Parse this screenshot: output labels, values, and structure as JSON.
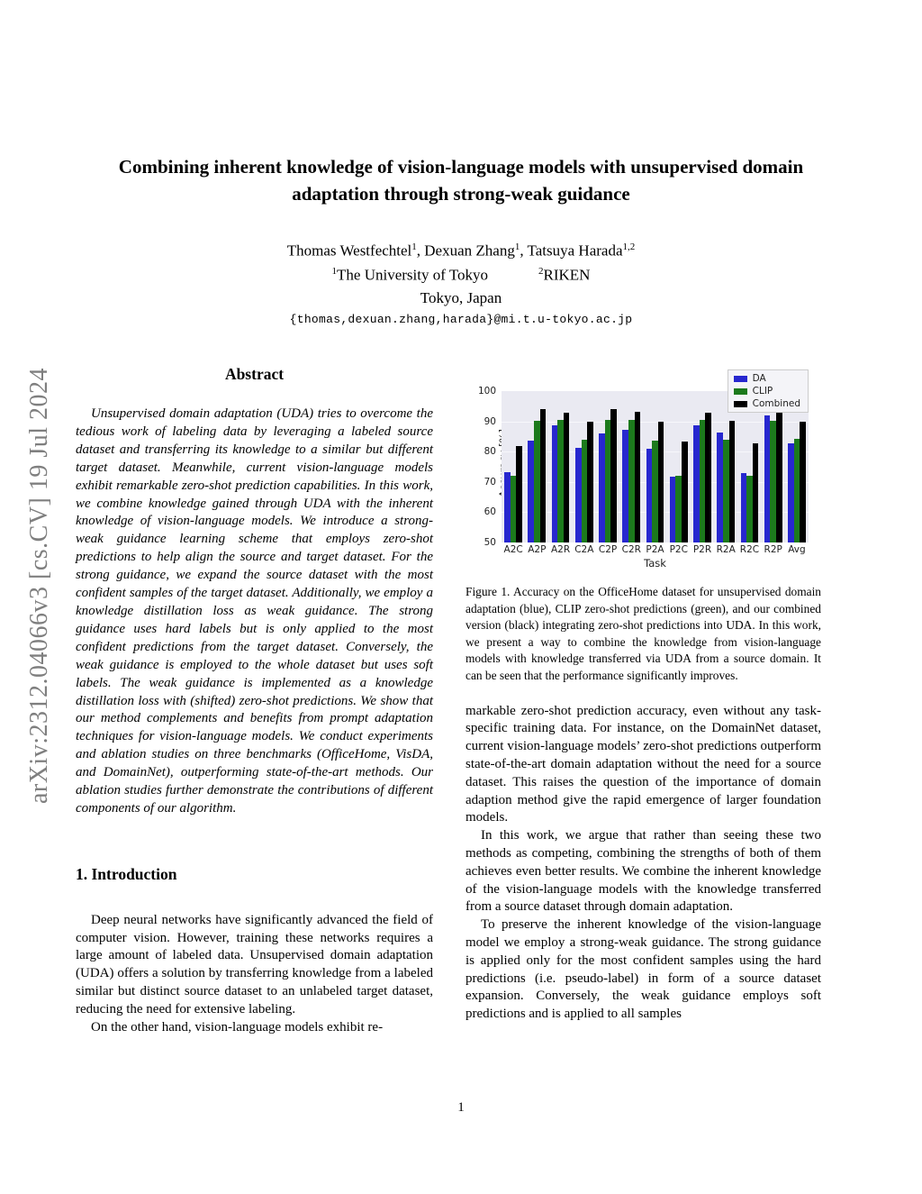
{
  "arxiv_banner": "arXiv:2312.04066v3  [cs.CV]  19 Jul 2024",
  "title": "Combining inherent knowledge of vision-language models with unsupervised domain adaptation through strong-weak guidance",
  "authors": {
    "line": [
      {
        "t": "Thomas Westfechtel",
        "s": "1"
      },
      {
        "t": ", Dexuan Zhang",
        "s": "1"
      },
      {
        "t": ", Tatsuya Harada",
        "s": "1,2"
      }
    ],
    "affiliations": [
      {
        "s": "1",
        "t": "The University of Tokyo"
      },
      {
        "s": "2",
        "t": "RIKEN"
      }
    ],
    "city": "Tokyo, Japan",
    "email": "{thomas,dexuan.zhang,harada}@mi.t.u-tokyo.ac.jp"
  },
  "abstract": {
    "heading": "Abstract",
    "text": "Unsupervised domain adaptation (UDA) tries to overcome the tedious work of labeling data by leveraging a labeled source dataset and transferring its knowledge to a similar but different target dataset. Meanwhile, current vision-language models exhibit remarkable zero-shot prediction capabilities. In this work, we combine knowledge gained through UDA with the inherent knowledge of vision-language models. We introduce a strong-weak guidance learning scheme that employs zero-shot predictions to help align the source and target dataset. For the strong guidance, we expand the source dataset with the most confident samples of the target dataset. Additionally, we employ a knowledge distillation loss as weak guidance. The strong guidance uses hard labels but is only applied to the most confident predictions from the target dataset. Conversely, the weak guidance is employed to the whole dataset but uses soft labels. The weak guidance is implemented as a knowledge distillation loss with (shifted) zero-shot predictions. We show that our method complements and benefits from prompt adaptation techniques for vision-language models. We conduct experiments and ablation studies on three benchmarks (OfficeHome, VisDA, and DomainNet), outperforming state-of-the-art methods. Our ablation studies further demonstrate the contributions of different components of our algorithm."
  },
  "introduction": {
    "heading": "1. Introduction",
    "paragraphs": [
      "Deep neural networks have significantly advanced the field of computer vision. However, training these networks requires a large amount of labeled data. Unsupervised domain adaptation (UDA) offers a solution by transferring knowledge from a labeled similar but distinct source dataset to an unlabeled target dataset, reducing the need for extensive labeling.",
      "On the other hand, vision-language models exhibit re-"
    ]
  },
  "figure": {
    "caption": "Figure 1.  Accuracy on the OfficeHome dataset for unsupervised domain adaptation (blue), CLIP zero-shot predictions (green), and our combined version (black) integrating zero-shot predictions into UDA. In this work, we present a way to combine the knowledge from vision-language models with knowledge transferred via UDA from a source domain. It can be seen that the performance significantly improves."
  },
  "right_column": {
    "paragraphs": [
      "markable zero-shot prediction accuracy, even without any task-specific training data. For instance, on the DomainNet dataset, current vision-language models’ zero-shot predictions outperform state-of-the-art domain adaptation without the need for a source dataset.  This raises the question of the importance of domain adaption method give the rapid emergence of larger foundation models.",
      "In this work, we argue that rather than seeing these two methods as competing, combining the strengths of both of them achieves even better results. We combine the inherent knowledge of the vision-language models with the knowledge transferred from a source dataset through domain adaptation.",
      "To preserve the inherent knowledge of the vision-language model we employ a strong-weak guidance. The strong guidance is applied only for the most confident samples using the hard predictions (i.e. pseudo-label) in form of a source dataset expansion. Conversely, the weak guidance employs soft predictions and is applied to all samples"
    ]
  },
  "chart_data": {
    "type": "bar",
    "title": "",
    "xlabel": "Task",
    "ylabel": "Accuracy [%]",
    "ylim": [
      50,
      100
    ],
    "yticks": [
      50,
      60,
      70,
      80,
      90,
      100
    ],
    "grid": true,
    "legend_position": "upper right",
    "plot_bg": "#eaeaf2",
    "categories": [
      "A2C",
      "A2P",
      "A2R",
      "C2A",
      "C2P",
      "C2R",
      "P2A",
      "P2C",
      "P2R",
      "R2A",
      "R2C",
      "R2P",
      "Avg"
    ],
    "series": [
      {
        "name": "DA",
        "color": "#2727cf",
        "values": [
          73.1,
          83.7,
          88.7,
          81.3,
          85.9,
          87.1,
          80.9,
          71.6,
          88.7,
          86.4,
          72.9,
          92.1,
          82.7
        ]
      },
      {
        "name": "CLIP",
        "color": "#1c7a1c",
        "values": [
          72.0,
          90.3,
          90.5,
          83.8,
          90.4,
          90.5,
          83.7,
          72.0,
          90.5,
          83.8,
          72.0,
          90.3,
          84.1
        ]
      },
      {
        "name": "Combined",
        "color": "#000000",
        "values": [
          81.8,
          94.0,
          92.8,
          89.8,
          94.0,
          93.2,
          89.8,
          83.3,
          93.0,
          90.2,
          82.7,
          94.2,
          89.9
        ]
      }
    ]
  },
  "page_number": "1"
}
